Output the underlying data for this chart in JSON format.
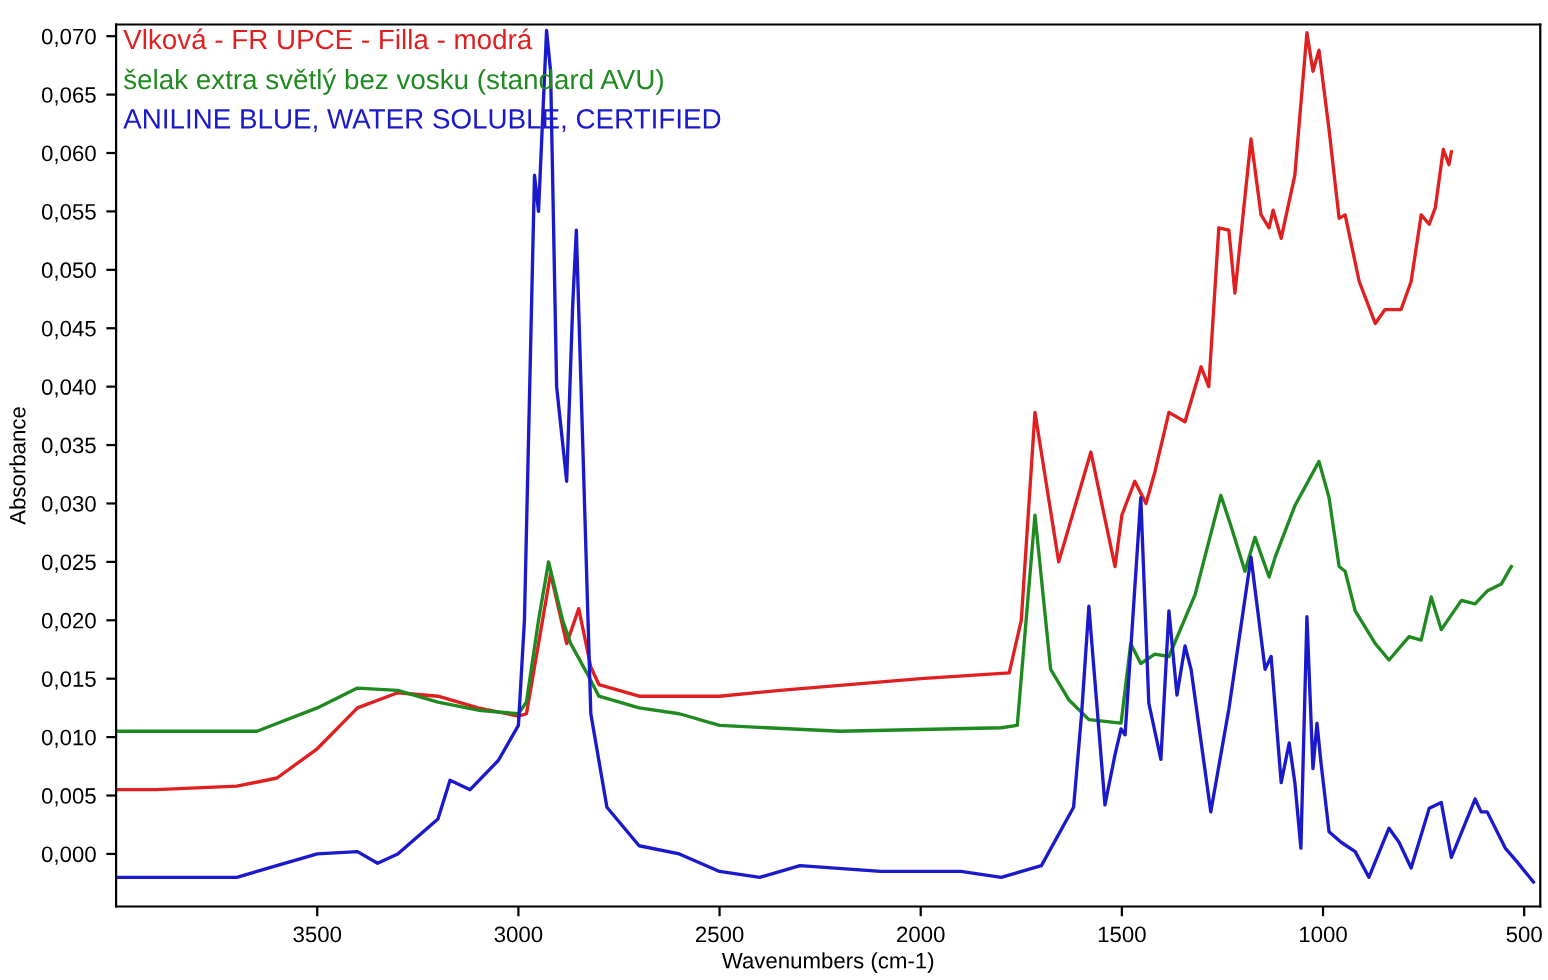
{
  "chart_data": {
    "type": "line",
    "xlabel": "Wavenumbers (cm-1)",
    "ylabel": "Absorbance",
    "xlim": [
      4000,
      460
    ],
    "ylim": [
      -0.0045,
      0.071
    ],
    "xticks": [
      3500,
      3000,
      2500,
      2000,
      1500,
      1000,
      500
    ],
    "yticks": [
      {
        "value": 0,
        "label": "0,000"
      },
      {
        "value": 0.005,
        "label": "0,005"
      },
      {
        "value": 0.01,
        "label": "0,010"
      },
      {
        "value": 0.015,
        "label": "0,015"
      },
      {
        "value": 0.02,
        "label": "0,020"
      },
      {
        "value": 0.025,
        "label": "0,025"
      },
      {
        "value": 0.03,
        "label": "0,030"
      },
      {
        "value": 0.035,
        "label": "0,035"
      },
      {
        "value": 0.04,
        "label": "0,040"
      },
      {
        "value": 0.045,
        "label": "0,045"
      },
      {
        "value": 0.05,
        "label": "0,050"
      },
      {
        "value": 0.055,
        "label": "0,055"
      },
      {
        "value": 0.06,
        "label": "0,060"
      },
      {
        "value": 0.065,
        "label": "0,065"
      },
      {
        "value": 0.07,
        "label": "0,070"
      }
    ],
    "grid": false,
    "legend": "top left",
    "marker": "none",
    "line_style": "solid",
    "series": [
      {
        "name": "Vlková - FR UPCE - Filla - modrá",
        "color": "#e02020",
        "x": [
          4000,
          3900,
          3700,
          3600,
          3500,
          3400,
          3300,
          3200,
          3100,
          3000,
          2980,
          2950,
          2920,
          2880,
          2850,
          2820,
          2800,
          2700,
          2500,
          2350,
          2000,
          1780,
          1750,
          1716,
          1657,
          1577,
          1517,
          1500,
          1468,
          1440,
          1418,
          1383,
          1343,
          1303,
          1284,
          1259,
          1234,
          1219,
          1179,
          1154,
          1134,
          1124,
          1104,
          1070,
          1040,
          1025,
          1010,
          985,
          960,
          945,
          910,
          870,
          846,
          806,
          781,
          756,
          736,
          721,
          701,
          687,
          681
        ],
        "values": [
          0.0055,
          0.0055,
          0.0058,
          0.0065,
          0.009,
          0.0125,
          0.0138,
          0.0135,
          0.0125,
          0.0118,
          0.012,
          0.018,
          0.024,
          0.018,
          0.021,
          0.016,
          0.0145,
          0.0135,
          0.0135,
          0.014,
          0.015,
          0.0155,
          0.02,
          0.0378,
          0.025,
          0.0344,
          0.0246,
          0.029,
          0.0319,
          0.03,
          0.0327,
          0.0378,
          0.037,
          0.0417,
          0.04,
          0.0536,
          0.0534,
          0.048,
          0.0612,
          0.0547,
          0.0536,
          0.0551,
          0.0527,
          0.0581,
          0.0703,
          0.067,
          0.0688,
          0.062,
          0.0544,
          0.0547,
          0.049,
          0.0454,
          0.0466,
          0.0466,
          0.049,
          0.0547,
          0.0539,
          0.0553,
          0.0603,
          0.059,
          0.0601
        ]
      },
      {
        "name": "šelak extra světlý bez vosku (standard AVU)",
        "color": "#1f8a1f",
        "x": [
          4000,
          3650,
          3500,
          3400,
          3300,
          3200,
          3100,
          3000,
          2980,
          2950,
          2925,
          2890,
          2870,
          2830,
          2800,
          2700,
          2600,
          2500,
          2200,
          1800,
          1760,
          1716,
          1677,
          1632,
          1582,
          1502,
          1478,
          1453,
          1418,
          1383,
          1318,
          1254,
          1229,
          1194,
          1169,
          1134,
          1119,
          1070,
          1010,
          985,
          960,
          945,
          920,
          870,
          836,
          786,
          756,
          731,
          706,
          656,
          622,
          592,
          557,
          532
        ],
        "values": [
          0.0105,
          0.0105,
          0.0125,
          0.0142,
          0.014,
          0.013,
          0.0123,
          0.012,
          0.013,
          0.02,
          0.025,
          0.02,
          0.018,
          0.0155,
          0.0135,
          0.0125,
          0.012,
          0.011,
          0.0105,
          0.0108,
          0.011,
          0.029,
          0.0158,
          0.0132,
          0.0115,
          0.0112,
          0.018,
          0.0163,
          0.0171,
          0.0169,
          0.0222,
          0.0307,
          0.0281,
          0.0242,
          0.0271,
          0.0237,
          0.0254,
          0.0298,
          0.0336,
          0.0305,
          0.0246,
          0.0242,
          0.0208,
          0.018,
          0.0166,
          0.0186,
          0.0183,
          0.022,
          0.0192,
          0.0217,
          0.0214,
          0.0225,
          0.0231,
          0.0246
        ]
      },
      {
        "name": "ANILINE BLUE, WATER SOLUBLE, CERTIFIED",
        "color": "#1a1acc",
        "x": [
          4000,
          3700,
          3650,
          3500,
          3400,
          3350,
          3300,
          3200,
          3170,
          3120,
          3050,
          3000,
          2985,
          2960,
          2950,
          2930,
          2920,
          2905,
          2880,
          2865,
          2856,
          2840,
          2820,
          2780,
          2700,
          2600,
          2500,
          2400,
          2300,
          2100,
          1900,
          1800,
          1700,
          1620,
          1600,
          1582,
          1542,
          1517,
          1502,
          1492,
          1453,
          1433,
          1403,
          1383,
          1363,
          1343,
          1328,
          1279,
          1234,
          1179,
          1144,
          1129,
          1104,
          1084,
          1070,
          1055,
          1040,
          1025,
          1015,
          1005,
          985,
          955,
          920,
          886,
          836,
          811,
          781,
          736,
          706,
          681,
          622,
          607,
          592,
          547,
          517,
          477
        ],
        "values": [
          -0.002,
          -0.002,
          -0.0015,
          0,
          0.0002,
          -0.0008,
          0,
          0.003,
          0.0063,
          0.0055,
          0.008,
          0.011,
          0.02,
          0.0581,
          0.055,
          0.0705,
          0.067,
          0.04,
          0.0319,
          0.047,
          0.0534,
          0.035,
          0.012,
          0.004,
          0.0007,
          0,
          -0.0015,
          -0.002,
          -0.001,
          -0.0015,
          -0.0015,
          -0.002,
          -0.001,
          0.004,
          0.012,
          0.0212,
          0.0042,
          0.0085,
          0.0107,
          0.0102,
          0.0305,
          0.0129,
          0.0081,
          0.0208,
          0.0136,
          0.0178,
          0.0158,
          0.0036,
          0.0124,
          0.0254,
          0.0158,
          0.0169,
          0.0061,
          0.0095,
          0.0061,
          0.0005,
          0.0203,
          0.0073,
          0.0112,
          0.0078,
          0.0019,
          0.001,
          0.0002,
          -0.002,
          0.0022,
          0.001,
          -0.0012,
          0.0039,
          0.0044,
          -0.0003,
          0.0047,
          0.0036,
          0.0036,
          0.0005,
          -0.0007,
          -0.0024
        ]
      }
    ]
  }
}
